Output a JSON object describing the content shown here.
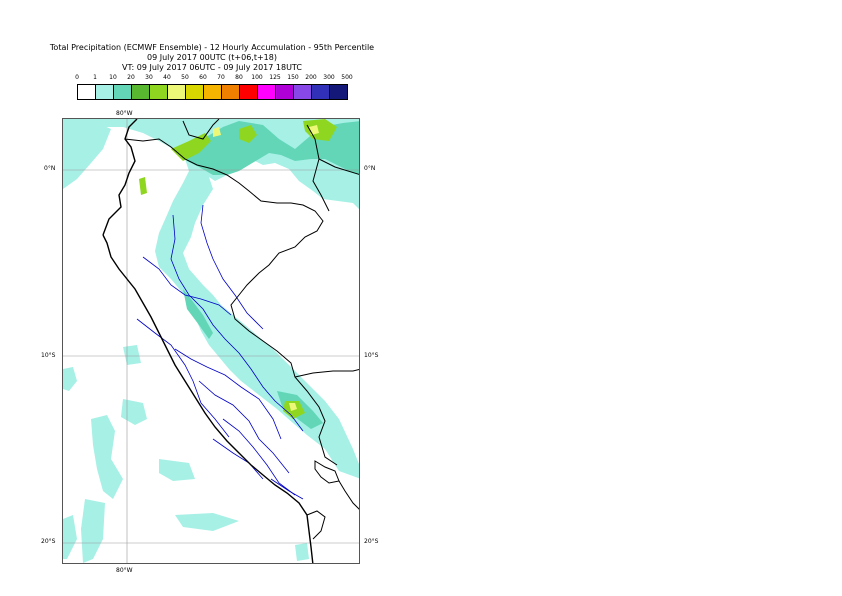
{
  "title": {
    "line1": "Total Precipitation (ECMWF Ensemble) - 12 Hourly Accumulation - 95th Percentile",
    "line2": "09 July 2017 00UTC (t+06,t+18)",
    "line3": "VT: 09 July 2017 06UTC - 09 July 2017 18UTC"
  },
  "legend": {
    "ticks": [
      "0",
      "1",
      "10",
      "20",
      "30",
      "40",
      "50",
      "60",
      "70",
      "80",
      "100",
      "125",
      "150",
      "200",
      "300",
      "500"
    ],
    "colors": [
      "#ffffff",
      "#a6f0e6",
      "#62d6b6",
      "#58b830",
      "#8fd620",
      "#eef878",
      "#d8d800",
      "#f4b400",
      "#f08000",
      "#ff0000",
      "#ff00ff",
      "#b000d8",
      "#8848e8",
      "#3030b8",
      "#141878"
    ]
  },
  "map": {
    "labels": {
      "lon_top": "80°W",
      "lon_bottom": "80°W",
      "lat_eq_left": "0°N",
      "lat_eq_right": "0°N",
      "lat_10_left": "10°S",
      "lat_10_right": "10°S",
      "lat_20_left": "20°S",
      "lat_20_right": "20°S"
    },
    "colors": {
      "light": "#a6f0e6",
      "medium": "#62d6b6",
      "green": "#8fd620",
      "yellow": "#eef878",
      "coast": "#000000",
      "rivers": "#0000c8",
      "grid": "#999999"
    }
  }
}
